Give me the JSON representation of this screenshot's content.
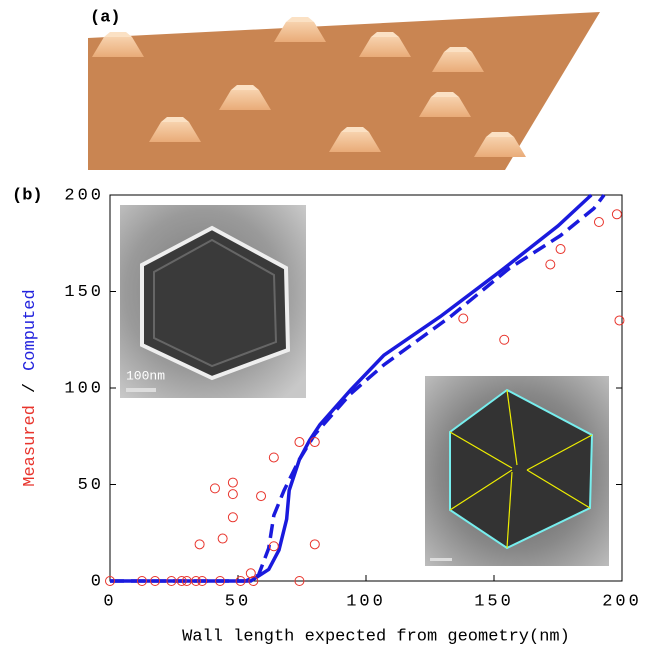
{
  "figure": {
    "panel_a_label": "(a)",
    "inset_scale_label": "100nm"
  },
  "chart_data": {
    "type": "scatter",
    "panel_label": "(b)",
    "xlabel": "Wall length expected from geometry(nm)",
    "ylabel_segments": [
      {
        "text": "Measured",
        "color": "#e8342c"
      },
      {
        "text": "/",
        "color": "#000000"
      },
      {
        "text": "Computed",
        "color": "#2222dd"
      }
    ],
    "xlim": [
      0,
      200
    ],
    "ylim": [
      0,
      200
    ],
    "xticks": [
      0,
      50,
      100,
      150,
      200
    ],
    "yticks": [
      0,
      50,
      100,
      150,
      200
    ],
    "grid": false,
    "series": [
      {
        "style": "markers",
        "color": "#e8342c",
        "x": [
          0,
          12.5,
          17.6,
          24,
          28,
          30,
          33.6,
          36,
          43,
          51,
          56,
          35,
          41,
          44,
          48,
          48,
          48,
          55,
          59,
          64,
          64,
          74,
          74,
          80,
          80,
          138,
          154,
          172,
          176,
          191,
          198,
          199
        ],
        "values": [
          0,
          0,
          0,
          0,
          0,
          0,
          0,
          0,
          0,
          0,
          0,
          19,
          48,
          22,
          51,
          45,
          33,
          4,
          44,
          64,
          18,
          72,
          0,
          72,
          19,
          136,
          125,
          164,
          172,
          186,
          190,
          135
        ]
      },
      {
        "style": "solid",
        "color": "#1a1add",
        "x": [
          0,
          55,
          62,
          66,
          69,
          70,
          74,
          78,
          82,
          94,
          107,
          129,
          152,
          175,
          188
        ],
        "values": [
          0,
          0,
          6,
          16,
          32,
          47,
          63,
          73,
          81,
          99,
          117,
          137,
          160,
          184,
          200
        ]
      },
      {
        "style": "dashed",
        "color": "#1a1add",
        "x": [
          0,
          53,
          58,
          62,
          64,
          68,
          74,
          80,
          94,
          107,
          133,
          156,
          176,
          189,
          193
        ],
        "values": [
          0,
          0,
          3,
          17,
          34,
          47,
          63,
          76,
          97,
          112,
          137,
          162,
          179,
          193,
          200
        ]
      }
    ]
  }
}
